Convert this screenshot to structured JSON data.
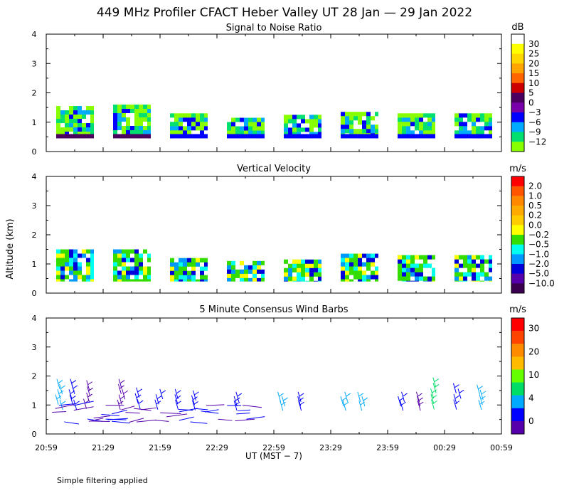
{
  "title": "449 MHz Profiler CFACT Heber Valley UT 28 Jan — 29 Jan 2022",
  "shared": {
    "ylabel": "Altitude (km)",
    "xlabel": "UT  (MST − 7)",
    "x_ticks": [
      "20:59",
      "21:29",
      "21:59",
      "22:29",
      "22:59",
      "23:29",
      "23:59",
      "00:29",
      "00:59"
    ],
    "y_ticks": [
      "0",
      "1",
      "2",
      "3",
      "4"
    ],
    "ylim": [
      0,
      4
    ],
    "footnote": "Simple filtering applied"
  },
  "chart_data": [
    {
      "type": "heatmap",
      "title": "Signal to Noise Ratio",
      "unit": "dB",
      "ylim": [
        0,
        4
      ],
      "colorbar_labels": [
        "30",
        "25",
        "20",
        "15",
        "10",
        "5",
        "0",
        "−3",
        "−6",
        "−9",
        "−12"
      ],
      "colorbar_colors": [
        "#ffffff",
        "#ffff00",
        "#ffd700",
        "#ffa500",
        "#ff6600",
        "#cc0000",
        "#4b0060",
        "#7a00aa",
        "#0000ff",
        "#00aaff",
        "#00e070",
        "#88ff00"
      ],
      "bands": [
        {
          "bottom": 0.45,
          "top": 1.55
        },
        {
          "bottom": 0.45,
          "top": 1.6
        },
        {
          "bottom": 0.45,
          "top": 1.3
        },
        {
          "bottom": 0.45,
          "top": 1.15
        },
        {
          "bottom": 0.45,
          "top": 1.25
        },
        {
          "bottom": 0.45,
          "top": 1.35
        },
        {
          "bottom": 0.45,
          "top": 1.3
        },
        {
          "bottom": 0.45,
          "top": 1.3
        }
      ]
    },
    {
      "type": "heatmap",
      "title": "Vertical Velocity",
      "unit": "m/s",
      "ylim": [
        0,
        4
      ],
      "colorbar_labels": [
        "2.0",
        "1.0",
        "0.5",
        "0.2",
        "0.0",
        "−0.2",
        "−0.5",
        "−1.0",
        "−2.0",
        "−5.0",
        "−10.0"
      ],
      "colorbar_colors": [
        "#ff0000",
        "#ff5500",
        "#ff8800",
        "#ffaa00",
        "#ffcc00",
        "#ffff00",
        "#33dd00",
        "#00ffee",
        "#0099ff",
        "#0000dd",
        "#5500aa",
        "#3a0050"
      ],
      "bands": [
        {
          "bottom": 0.4,
          "top": 1.5
        },
        {
          "bottom": 0.4,
          "top": 1.5
        },
        {
          "bottom": 0.4,
          "top": 1.2
        },
        {
          "bottom": 0.4,
          "top": 1.1
        },
        {
          "bottom": 0.4,
          "top": 1.15
        },
        {
          "bottom": 0.4,
          "top": 1.35
        },
        {
          "bottom": 0.4,
          "top": 1.3
        },
        {
          "bottom": 0.4,
          "top": 1.3
        }
      ]
    },
    {
      "type": "scatter",
      "title": "5 Minute Consensus Wind Barbs",
      "unit": "m/s",
      "ylim": [
        0,
        4
      ],
      "colorbar_labels": [
        "30",
        "20",
        "10",
        "4",
        "0"
      ],
      "colorbar_colors": [
        "#ff0000",
        "#ff4400",
        "#ff8c00",
        "#ffbb00",
        "#66ff00",
        "#00dd66",
        "#00aaff",
        "#0000ff",
        "#5500aa"
      ],
      "barb_columns": [
        {
          "x": 0.2,
          "top": 1.9,
          "color": "#00aaff"
        },
        {
          "x": 0.45,
          "top": 1.9,
          "color": "#0000ff"
        },
        {
          "x": 0.7,
          "top": 1.85,
          "color": "#5500aa"
        },
        {
          "x": 1.3,
          "top": 1.9,
          "color": "#5500aa"
        },
        {
          "x": 1.6,
          "top": 1.6,
          "color": "#0000ff"
        },
        {
          "x": 1.95,
          "top": 1.55,
          "color": "#0000ff"
        },
        {
          "x": 2.3,
          "top": 1.55,
          "color": "#0000ff"
        },
        {
          "x": 2.6,
          "top": 1.5,
          "color": "#0000ff"
        },
        {
          "x": 3.3,
          "top": 1.45,
          "color": "#0000ff"
        },
        {
          "x": 4.1,
          "top": 1.45,
          "color": "#00aaff"
        },
        {
          "x": 4.4,
          "top": 1.45,
          "color": "#0000ff"
        },
        {
          "x": 5.2,
          "top": 1.45,
          "color": "#00aaff"
        },
        {
          "x": 5.5,
          "top": 1.45,
          "color": "#00aaff"
        },
        {
          "x": 6.2,
          "top": 1.45,
          "color": "#0000ff"
        },
        {
          "x": 6.5,
          "top": 1.45,
          "color": "#5500aa"
        },
        {
          "x": 6.8,
          "top": 1.95,
          "color": "#00dd66"
        },
        {
          "x": 7.2,
          "top": 1.75,
          "color": "#0000ff"
        },
        {
          "x": 7.6,
          "top": 1.7,
          "color": "#00aaff"
        }
      ]
    }
  ]
}
